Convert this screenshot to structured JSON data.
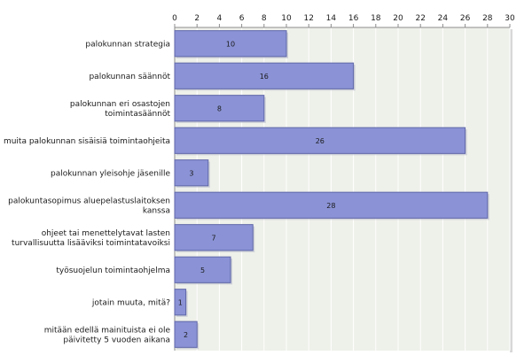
{
  "chart_data": {
    "type": "bar",
    "orientation": "horizontal",
    "categories": [
      "palokunnan strategia",
      "palokunnan säännöt",
      "palokunnan eri osastojen toimintasäännöt",
      "muita palokunnan sisäisiä toimintaohjeita",
      "palokunnan yleisohje jäsenille",
      "palokuntasopimus aluepelastuslaitoksen kanssa",
      "ohjeet tai menettelytavat lasten turvallisuutta lisääviksi toimintatavoiksi",
      "työsuojelun toimintaohjelma",
      "jotain muuta, mitä?",
      "mitään edellä mainituista ei ole päivitetty 5 vuoden aikana"
    ],
    "category_lines": [
      [
        "palokunnan strategia"
      ],
      [
        "palokunnan säännöt"
      ],
      [
        "palokunnan eri osastojen",
        "toimintasäännöt"
      ],
      [
        "muita palokunnan sisäisiä toimintaohjeita"
      ],
      [
        "palokunnan yleisohje jäsenille"
      ],
      [
        "palokuntasopimus aluepelastuslaitoksen",
        "kanssa"
      ],
      [
        "ohjeet tai menettelytavat lasten",
        "turvallisuutta lisääviksi toimintatavoiksi"
      ],
      [
        "työsuojelun toimintaohjelma"
      ],
      [
        "jotain muuta, mitä?"
      ],
      [
        "mitään edellä mainituista ei ole",
        "päivitetty 5 vuoden aikana"
      ]
    ],
    "values": [
      10,
      16,
      8,
      26,
      3,
      28,
      7,
      5,
      1,
      2
    ],
    "xlim": [
      0,
      30
    ],
    "xticks": [
      0,
      2,
      4,
      6,
      8,
      10,
      12,
      14,
      16,
      18,
      20,
      22,
      24,
      26,
      28,
      30
    ],
    "xaxis_position": "top",
    "grid": true,
    "title": "",
    "xlabel": "",
    "ylabel": "",
    "colors": {
      "bar_fill": "#8b93d6",
      "bar_stroke": "#5f66a8",
      "plot_bg": "#eef0ea",
      "grid": "#ffffff",
      "axis": "#8c8c8c"
    }
  }
}
